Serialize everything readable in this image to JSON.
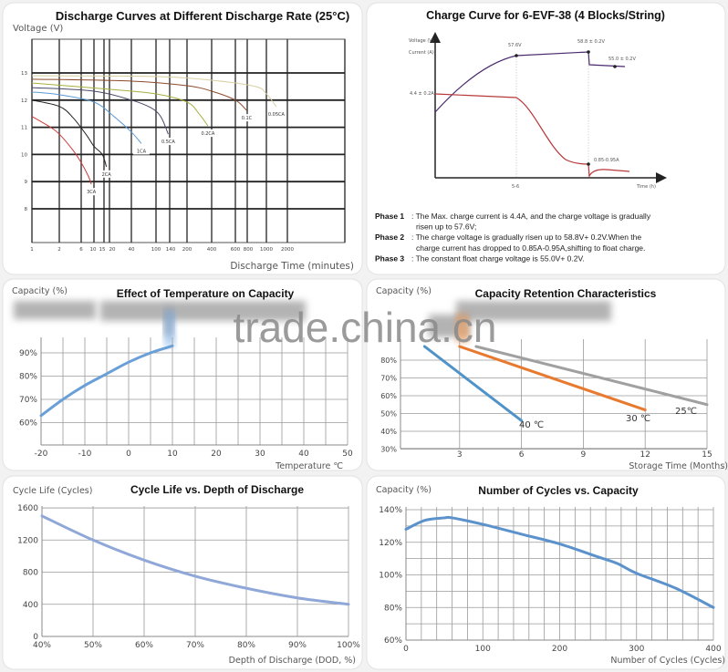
{
  "watermark": "trade.china.cn",
  "chart_data": [
    {
      "type": "line",
      "title": "Discharge Curves at Different Discharge Rate (25°C)",
      "ylabel": "Voltage (V)",
      "xlabel": "Discharge Time (minutes)",
      "x_scale": "log",
      "grid": true,
      "yticks": [
        8,
        9,
        10,
        11,
        12,
        13
      ],
      "ytick_labels": [
        "8",
        "9",
        "10",
        "11",
        "12",
        "13"
      ],
      "xticks": [
        1,
        2,
        6,
        10,
        15,
        20,
        40,
        100,
        140,
        200,
        400,
        600,
        800,
        1000,
        2000
      ],
      "xtick_labels": [
        "1",
        "2",
        "6",
        "10",
        "15",
        "20",
        "40",
        "100",
        "140",
        "200",
        "400",
        "600",
        "800",
        "1000",
        "2000"
      ],
      "series": [
        {
          "name": "3CA",
          "color": "#d03a3a",
          "points": [
            [
              1,
              11.4
            ],
            [
              1.6,
              11.0
            ],
            [
              2,
              10.75
            ],
            [
              4,
              10.15
            ],
            [
              6,
              9.7
            ],
            [
              8,
              9.2
            ],
            [
              9,
              8.9
            ]
          ]
        },
        {
          "name": "2CA",
          "color": "#222222",
          "points": [
            [
              1,
              12.0
            ],
            [
              2,
              11.77
            ],
            [
              4,
              11.35
            ],
            [
              7.5,
              10.7
            ],
            [
              10,
              10.3
            ],
            [
              14,
              10.0
            ],
            [
              17,
              9.55
            ]
          ]
        },
        {
          "name": "1CA",
          "color": "#5b9bd5",
          "points": [
            [
              1,
              12.3
            ],
            [
              2,
              12.2
            ],
            [
              10,
              11.93
            ],
            [
              23,
              11.4
            ],
            [
              41,
              10.8
            ],
            [
              58,
              10.4
            ]
          ]
        },
        {
          "name": "0.5CA",
          "color": "#4a4a6a",
          "points": [
            [
              1,
              12.46
            ],
            [
              10,
              12.33
            ],
            [
              40,
              12.0
            ],
            [
              81,
              11.73
            ],
            [
              112,
              11.4
            ],
            [
              135,
              10.75
            ]
          ]
        },
        {
          "name": "0.2CA",
          "color": "#a8b040",
          "points": [
            [
              1,
              12.63
            ],
            [
              20,
              12.4
            ],
            [
              100,
              12.23
            ],
            [
              200,
              11.93
            ],
            [
              280,
              11.5
            ],
            [
              360,
              11.05
            ]
          ]
        },
        {
          "name": "0.1C",
          "color": "#8b4a2a",
          "points": [
            [
              1,
              12.77
            ],
            [
              40,
              12.7
            ],
            [
              200,
              12.53
            ],
            [
              400,
              12.33
            ],
            [
              600,
              12.0
            ],
            [
              790,
              11.62
            ]
          ]
        },
        {
          "name": "0.05CA",
          "color": "#d8cfa0",
          "points": [
            [
              1,
              12.9
            ],
            [
              100,
              12.87
            ],
            [
              400,
              12.73
            ],
            [
              880,
              12.5
            ],
            [
              1000,
              12.23
            ],
            [
              1390,
              11.76
            ]
          ]
        }
      ]
    },
    {
      "type": "line",
      "title": "Charge Curve for 6-EVF-38 (4 Blocks/String)",
      "ylabel_voltage": "Voltage (V)",
      "ylabel_current": "Current (A)",
      "xlabel": "Time (h)",
      "x_annotation": "5-6",
      "annotations": {
        "max_current": "4.4 ± 0.2A",
        "v1": "57.6V",
        "v2": "58.8 ± 0.2V",
        "float": "55.0 ± 0.2V",
        "end_current": "0.85-0.95A"
      },
      "colors": {
        "voltage": "#4b2a6e",
        "current": "#b8383a"
      },
      "phases": [
        {
          "label": "Phase 1",
          "lines": [
            ": The Max. charge current is 4.4A, and the charge voltage is gradually",
            "risen up to 57.6V;"
          ]
        },
        {
          "label": "Phase 2",
          "lines": [
            ": The charge voltage is gradually risen up to 58.8V+ 0.2V.When the",
            "charge current has dropped to 0.85A-0.95A,shifting to float charge."
          ]
        },
        {
          "label": "Phase 3",
          "lines": [
            ": The constant float charge voltage is 55.0V+ 0.2V."
          ]
        }
      ]
    },
    {
      "type": "line",
      "title": "Effect of Temperature on Capacity",
      "ylabel": "Capacity (%)",
      "xlabel": "Temperature ℃",
      "grid": true,
      "xlim": [
        -20,
        50
      ],
      "xticks": [
        -20,
        -10,
        0,
        10,
        20,
        30,
        40,
        50
      ],
      "xtick_labels": [
        "-20",
        "-10",
        "0",
        "10",
        "20",
        "30",
        "40",
        "50"
      ],
      "yticks": [
        60,
        70,
        80,
        90
      ],
      "ytick_labels": [
        "60%",
        "70%",
        "80%",
        "90%"
      ],
      "series": [
        {
          "color": "#6a9fd8",
          "points": [
            [
              -20,
              63
            ],
            [
              -15,
              70
            ],
            [
              -10,
              76
            ],
            [
              -5,
              81
            ],
            [
              0,
              86
            ],
            [
              5,
              90
            ],
            [
              10,
              93
            ]
          ]
        }
      ]
    },
    {
      "type": "line",
      "title": "Capacity Retention Characteristics",
      "ylabel": "Capacity (%)",
      "xlabel": "Storage Time (Months)",
      "grid": true,
      "xlim": [
        0,
        15
      ],
      "xticks": [
        3,
        6,
        9,
        12,
        15
      ],
      "xtick_labels": [
        "3",
        "6",
        "9",
        "12",
        "15"
      ],
      "yticks": [
        30,
        40,
        50,
        60,
        70,
        80
      ],
      "ytick_labels": [
        "30%",
        "40%",
        "50%",
        "60%",
        "70%",
        "80%"
      ],
      "series": [
        {
          "name": "40 ℃",
          "color": "#4f93c9",
          "points": [
            [
              1.3,
              87.7
            ],
            [
              6,
              46
            ]
          ]
        },
        {
          "name": "30 ℃",
          "color": "#e87a30",
          "points": [
            [
              3,
              87.7
            ],
            [
              12,
              52
            ]
          ]
        },
        {
          "name": "25℃",
          "color": "#a0a0a0",
          "points": [
            [
              3.8,
              87.7
            ],
            [
              15,
              55
            ]
          ]
        }
      ]
    },
    {
      "type": "line",
      "title": "Cycle Life vs. Depth of Discharge",
      "ylabel": "Cycle Life (Cycles)",
      "xlabel": "Depth of Discharge (DOD, %)",
      "grid": true,
      "xlim": [
        40,
        100
      ],
      "ylim": [
        0,
        1600
      ],
      "xticks": [
        40,
        50,
        60,
        70,
        80,
        90,
        100
      ],
      "xtick_labels": [
        "40%",
        "50%",
        "60%",
        "70%",
        "80%",
        "90%",
        "100%"
      ],
      "yticks": [
        0,
        400,
        800,
        1200,
        1600
      ],
      "ytick_labels": [
        "0",
        "400",
        "800",
        "1200",
        "1600"
      ],
      "series": [
        {
          "color": "#8fa8d8",
          "points": [
            [
              40,
              1500
            ],
            [
              50,
              1200
            ],
            [
              60,
              950
            ],
            [
              70,
              750
            ],
            [
              80,
              600
            ],
            [
              90,
              480
            ],
            [
              100,
              400
            ]
          ]
        }
      ]
    },
    {
      "type": "line",
      "title": "Number of Cycles vs. Capacity",
      "ylabel": "Capacity (%)",
      "xlabel": "Number of Cycles (Cycles)",
      "grid": true,
      "xlim": [
        0,
        400
      ],
      "ylim": [
        60,
        140
      ],
      "xticks": [
        0,
        100,
        200,
        300,
        400
      ],
      "xtick_labels": [
        "0",
        "100",
        "200",
        "300",
        "400"
      ],
      "yticks": [
        60,
        80,
        100,
        120,
        140
      ],
      "ytick_labels": [
        "60%",
        "80%",
        "100%",
        "120%",
        "140%"
      ],
      "series": [
        {
          "color": "#5b92cc",
          "points": [
            [
              0,
              128
            ],
            [
              25,
              133.5
            ],
            [
              50,
              135
            ],
            [
              60,
              135
            ],
            [
              100,
              131
            ],
            [
              150,
              125
            ],
            [
              200,
              119
            ],
            [
              250,
              111
            ],
            [
              275,
              107
            ],
            [
              300,
              101
            ],
            [
              350,
              92
            ],
            [
              400,
              80
            ]
          ]
        }
      ]
    }
  ]
}
